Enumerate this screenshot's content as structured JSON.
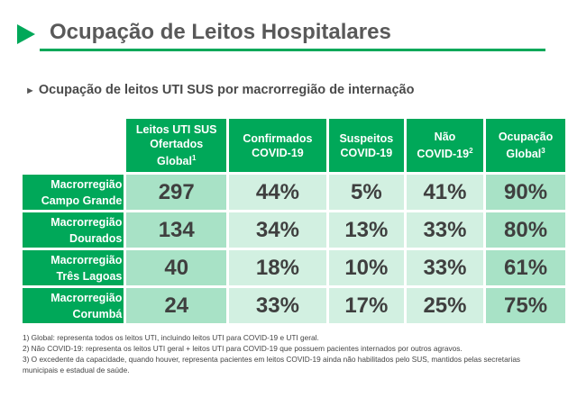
{
  "title": "Ocupação de Leitos Hospitalares",
  "subtitle": "Ocupação de leitos UTI SUS por macrorregião de internação",
  "colors": {
    "accent": "#00a859",
    "cell_dark": "#a8e2c6",
    "cell_light": "#d2f0e1"
  },
  "table": {
    "headers": [
      {
        "line1": "Leitos UTI SUS",
        "line2": "Ofertados",
        "line3": "Global",
        "sup": "1"
      },
      {
        "line1": "Confirmados",
        "line2": "COVID-19"
      },
      {
        "line1": "Suspeitos",
        "line2": "COVID-19"
      },
      {
        "line1": "Não",
        "line2": "COVID-19",
        "sup": "2"
      },
      {
        "line1": "Ocupação",
        "line2": "Global",
        "sup": "3"
      }
    ],
    "rows": [
      {
        "line1": "Macrorregião",
        "line2": "Campo Grande",
        "values": [
          "297",
          "44%",
          "5%",
          "41%",
          "90%"
        ]
      },
      {
        "line1": "Macrorregião",
        "line2": "Dourados",
        "values": [
          "134",
          "34%",
          "13%",
          "33%",
          "80%"
        ]
      },
      {
        "line1": "Macrorregião",
        "line2": "Três Lagoas",
        "values": [
          "40",
          "18%",
          "10%",
          "33%",
          "61%"
        ]
      },
      {
        "line1": "Macrorregião",
        "line2": "Corumbá",
        "values": [
          "24",
          "33%",
          "17%",
          "25%",
          "75%"
        ]
      }
    ]
  },
  "footnotes": [
    "1) Global: representa todos os leitos UTI, incluindo leitos UTI para COVID-19 e UTI geral.",
    "2) Não COVID-19: representa os leitos UTI geral + leitos UTI para COVID-19 que possuem pacientes internados por outros agravos.",
    "3) O excedente da capacidade, quando houver, representa pacientes em leitos COVID-19 ainda não habilitados pelo SUS, mantidos pelas secretarias municipais e estadual de saúde."
  ]
}
